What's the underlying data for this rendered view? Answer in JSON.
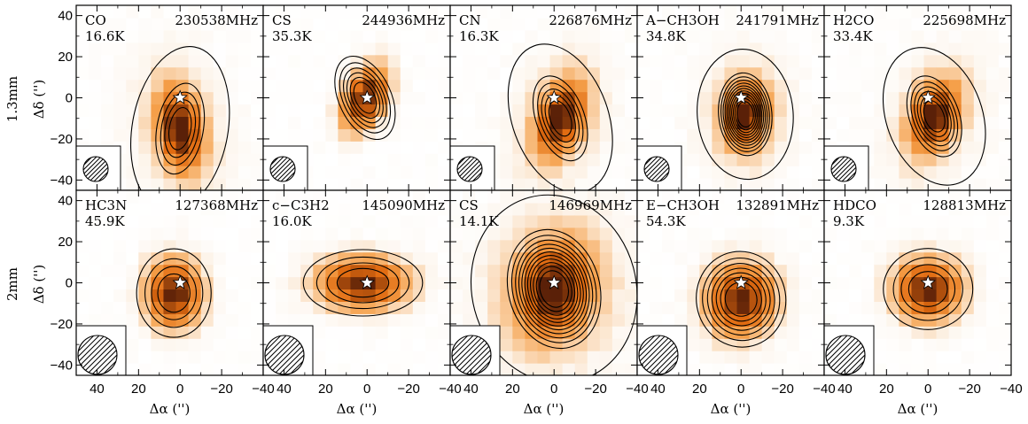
{
  "figure": {
    "row_labels": [
      "1.3mm",
      "2mm"
    ],
    "x_axis_label": "Δα ('')",
    "y_axis_label": "Δδ ('')",
    "x_ticks": [
      40,
      20,
      0,
      -20,
      -40
    ],
    "y_ticks": [
      40,
      20,
      0,
      -20,
      -40
    ]
  },
  "colors": {
    "map_low": "#fdf6ee",
    "map_mid": "#f5a04a",
    "map_high": "#e06a10",
    "map_dark": "#5a2008",
    "contour": "#000000"
  },
  "chart_data": [
    {
      "type": "heatmap",
      "row": 0,
      "col": 0,
      "species": "CO",
      "frequency": "230538MHz",
      "peak": "16.6K",
      "xlim": [
        50,
        -40
      ],
      "ylim": [
        -45,
        45
      ],
      "peak_offset": [
        0,
        -15
      ],
      "extent": [
        7,
        14
      ],
      "angle": -10,
      "contours": 5,
      "spread": "wide"
    },
    {
      "type": "heatmap",
      "row": 0,
      "col": 1,
      "species": "CS",
      "frequency": "244936MHz",
      "peak": "35.3K",
      "xlim": [
        50,
        -40
      ],
      "ylim": [
        -45,
        45
      ],
      "peak_offset": [
        1,
        0
      ],
      "extent": [
        7,
        12
      ],
      "angle": 25,
      "contours": 6,
      "spread": "compact"
    },
    {
      "type": "heatmap",
      "row": 0,
      "col": 2,
      "species": "CN",
      "frequency": "226876MHz",
      "peak": "16.3K",
      "xlim": [
        50,
        -40
      ],
      "ylim": [
        -45,
        45
      ],
      "peak_offset": [
        -3,
        -10
      ],
      "extent": [
        7,
        13
      ],
      "angle": 20,
      "contours": 6,
      "spread": "wide"
    },
    {
      "type": "heatmap",
      "row": 0,
      "col": 3,
      "species": "A−CH3OH",
      "frequency": "241791MHz",
      "peak": "34.8K",
      "xlim": [
        50,
        -40
      ],
      "ylim": [
        -45,
        45
      ],
      "peak_offset": [
        -2,
        -8
      ],
      "extent": [
        7,
        11
      ],
      "angle": 5,
      "contours": 12,
      "spread": "wide"
    },
    {
      "type": "heatmap",
      "row": 0,
      "col": 4,
      "species": "H2CO",
      "frequency": "225698MHz",
      "peak": "33.4K",
      "xlim": [
        50,
        -40
      ],
      "ylim": [
        -45,
        45
      ],
      "peak_offset": [
        -3,
        -9
      ],
      "extent": [
        7,
        12
      ],
      "angle": 20,
      "contours": 7,
      "spread": "wide"
    },
    {
      "type": "heatmap",
      "row": 1,
      "col": 0,
      "species": "HC3N",
      "frequency": "127368MHz",
      "peak": "45.9K",
      "xlim": [
        50,
        -40
      ],
      "ylim": [
        -45,
        45
      ],
      "peak_offset": [
        3,
        -5
      ],
      "extent": [
        10,
        12
      ],
      "angle": 0,
      "contours": 4,
      "spread": "compact"
    },
    {
      "type": "heatmap",
      "row": 1,
      "col": 1,
      "species": "c−C3H2",
      "frequency": "145090MHz",
      "peak": "16.0K",
      "xlim": [
        50,
        -40
      ],
      "ylim": [
        -45,
        45
      ],
      "peak_offset": [
        2,
        0
      ],
      "extent": [
        16,
        9
      ],
      "angle": 0,
      "contours": 4,
      "spread": "compact"
    },
    {
      "type": "heatmap",
      "row": 1,
      "col": 2,
      "species": "CS",
      "frequency": "146969MHz",
      "peak": "14.1K",
      "xlim": [
        50,
        -40
      ],
      "ylim": [
        -45,
        45
      ],
      "peak_offset": [
        0,
        -3
      ],
      "extent": [
        12,
        16
      ],
      "angle": 15,
      "contours": 12,
      "spread": "wide"
    },
    {
      "type": "heatmap",
      "row": 1,
      "col": 3,
      "species": "E−CH3OH",
      "frequency": "132891MHz",
      "peak": "54.3K",
      "xlim": [
        50,
        -40
      ],
      "ylim": [
        -45,
        45
      ],
      "peak_offset": [
        0,
        -8
      ],
      "extent": [
        12,
        13
      ],
      "angle": 10,
      "contours": 7,
      "spread": "compact"
    },
    {
      "type": "heatmap",
      "row": 1,
      "col": 4,
      "species": "HDCO",
      "frequency": "128813MHz",
      "peak": "9.3K",
      "xlim": [
        50,
        -40
      ],
      "ylim": [
        -45,
        45
      ],
      "peak_offset": [
        0,
        -3
      ],
      "extent": [
        12,
        11
      ],
      "angle": 0,
      "contours": 4,
      "spread": "compact"
    }
  ]
}
